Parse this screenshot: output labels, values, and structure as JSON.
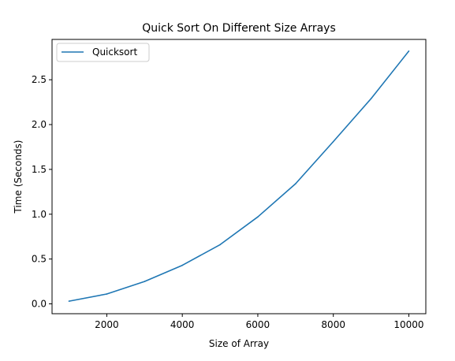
{
  "chart_data": {
    "type": "line",
    "title": "Quick Sort On Different Size Arrays",
    "xlabel": "Size of Array",
    "ylabel": "Time (Seconds)",
    "xlim": [
      550,
      10450
    ],
    "ylim": [
      -0.11,
      2.95
    ],
    "xticks": [
      2000,
      4000,
      6000,
      8000,
      10000
    ],
    "xtick_labels": [
      "2000",
      "4000",
      "6000",
      "8000",
      "10000"
    ],
    "yticks": [
      0.0,
      0.5,
      1.0,
      1.5,
      2.0,
      2.5
    ],
    "ytick_labels": [
      "0.0",
      "0.5",
      "1.0",
      "1.5",
      "2.0",
      "2.5"
    ],
    "grid": false,
    "legend_position": "top-left",
    "series": [
      {
        "name": "Quicksort",
        "color": "#1f77b4",
        "x": [
          1000,
          2000,
          3000,
          4000,
          5000,
          6000,
          7000,
          8000,
          9000,
          10000
        ],
        "y": [
          0.03,
          0.11,
          0.25,
          0.43,
          0.66,
          0.97,
          1.34,
          1.81,
          2.29,
          2.82
        ]
      }
    ]
  }
}
